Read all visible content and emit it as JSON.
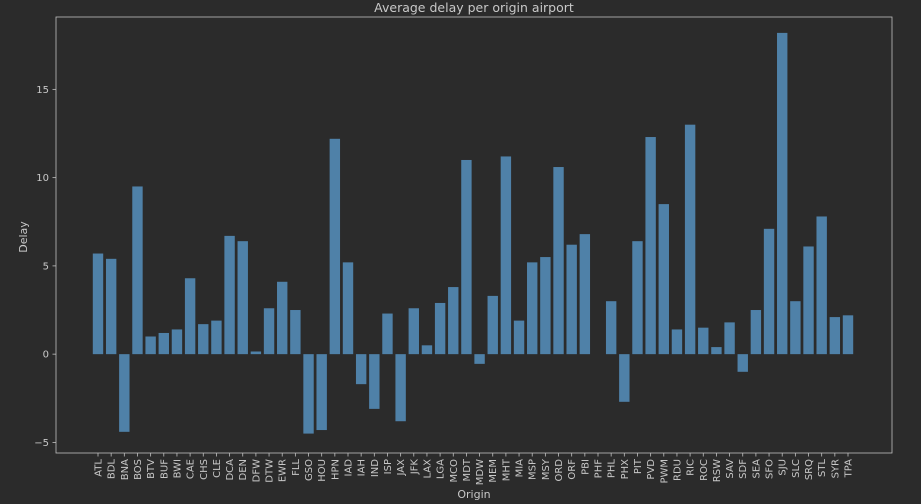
{
  "chart_data": {
    "type": "bar",
    "title": "Average delay per origin airport",
    "xlabel": "Origin",
    "ylabel": "Delay",
    "ylim": [
      -5.6,
      19.1
    ],
    "yticks": [
      -5,
      0,
      5,
      10,
      15
    ],
    "grid": false,
    "bar_color": "#4f81a8",
    "categories": [
      "ATL",
      "BDL",
      "BNA",
      "BOS",
      "BTV",
      "BUF",
      "BWI",
      "CAE",
      "CHS",
      "CLE",
      "DCA",
      "DEN",
      "DFW",
      "DTW",
      "EWR",
      "FLL",
      "GSO",
      "HOU",
      "HPN",
      "IAD",
      "IAH",
      "IND",
      "ISP",
      "JAX",
      "JFK",
      "LAX",
      "LGA",
      "MCO",
      "MDT",
      "MDW",
      "MEM",
      "MHT",
      "MIA",
      "MSP",
      "MSY",
      "ORD",
      "ORF",
      "PBI",
      "PHF",
      "PHL",
      "PHX",
      "PIT",
      "PVD",
      "PWM",
      "RDU",
      "RIC",
      "ROC",
      "RSW",
      "SAV",
      "SDF",
      "SEA",
      "SFO",
      "SJU",
      "SLC",
      "SRQ",
      "STL",
      "SYR",
      "TPA"
    ],
    "values": [
      5.7,
      5.4,
      -4.4,
      9.5,
      1.0,
      1.2,
      1.4,
      4.3,
      1.7,
      1.9,
      6.7,
      6.4,
      0.15,
      2.6,
      4.1,
      2.5,
      -4.5,
      -4.3,
      12.2,
      5.2,
      -1.7,
      -3.1,
      2.3,
      -3.8,
      2.6,
      0.5,
      2.9,
      3.8,
      11.0,
      -0.55,
      3.3,
      11.2,
      1.9,
      5.2,
      5.5,
      10.6,
      6.2,
      6.8,
      0,
      3.0,
      -2.7,
      6.4,
      12.3,
      8.5,
      1.4,
      13.0,
      1.5,
      0.4,
      1.8,
      -1.0,
      2.5,
      7.1,
      18.2,
      3.0,
      6.1,
      7.8,
      2.1,
      2.2
    ]
  }
}
